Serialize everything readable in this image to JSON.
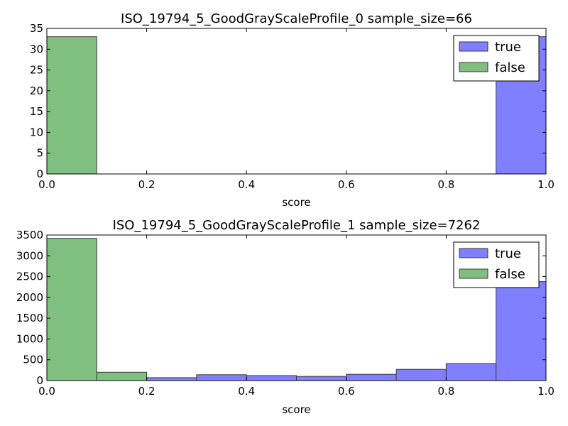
{
  "chart_data": [
    {
      "type": "bar",
      "title": "ISO_19794_5_GoodGrayScaleProfile_0 sample_size=66",
      "xlabel": "score",
      "ylabel": "",
      "xlim": [
        0.0,
        1.0
      ],
      "ylim": [
        0,
        35
      ],
      "xticks": [
        "0.0",
        "0.2",
        "0.4",
        "0.6",
        "0.8",
        "1.0"
      ],
      "yticks": [
        "0",
        "5",
        "10",
        "15",
        "20",
        "25",
        "30",
        "35"
      ],
      "bin_edges": [
        0.0,
        0.1,
        0.2,
        0.3,
        0.4,
        0.5,
        0.6,
        0.7,
        0.8,
        0.9,
        1.0
      ],
      "legend_position": "top-right",
      "series": [
        {
          "name": "true",
          "color": "#7f7fff",
          "values": [
            0,
            0,
            0,
            0,
            0,
            0,
            0,
            0,
            0,
            33
          ]
        },
        {
          "name": "false",
          "color": "#7fbf7f",
          "values": [
            33,
            0,
            0,
            0,
            0,
            0,
            0,
            0,
            0,
            0
          ]
        }
      ]
    },
    {
      "type": "bar",
      "title": "ISO_19794_5_GoodGrayScaleProfile_1 sample_size=7262",
      "xlabel": "score",
      "ylabel": "",
      "xlim": [
        0.0,
        1.0
      ],
      "ylim": [
        0,
        3500
      ],
      "xticks": [
        "0.0",
        "0.2",
        "0.4",
        "0.6",
        "0.8",
        "1.0"
      ],
      "yticks": [
        "0",
        "500",
        "1000",
        "1500",
        "2000",
        "2500",
        "3000",
        "3500"
      ],
      "bin_edges": [
        0.0,
        0.1,
        0.2,
        0.3,
        0.4,
        0.5,
        0.6,
        0.7,
        0.8,
        0.9,
        1.0
      ],
      "legend_position": "top-right",
      "series": [
        {
          "name": "true",
          "color": "#7f7fff",
          "values": [
            0,
            0,
            70,
            140,
            120,
            100,
            150,
            270,
            410,
            2380
          ]
        },
        {
          "name": "false",
          "color": "#7fbf7f",
          "values": [
            3420,
            200,
            0,
            0,
            0,
            0,
            0,
            0,
            0,
            0
          ]
        }
      ]
    }
  ]
}
